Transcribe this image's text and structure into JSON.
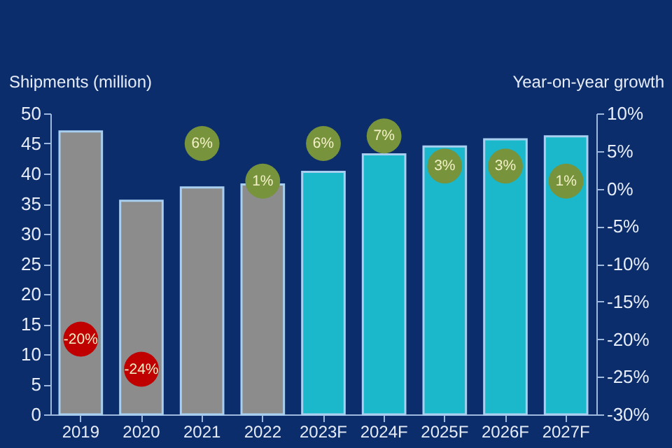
{
  "chart_data": {
    "type": "bar",
    "ylabel": "Shipments (million)",
    "y2label": "Year-on-year growth",
    "categories": [
      "2019",
      "2020",
      "2021",
      "2022",
      "2023F",
      "2024F",
      "2025F",
      "2026F",
      "2027F"
    ],
    "series": [
      {
        "values": [
          47.0,
          35.5,
          37.7,
          38.2,
          40.3,
          43.2,
          44.5,
          45.7,
          46.2
        ],
        "colors": [
          "#8c8c8c",
          "#8c8c8c",
          "#8c8c8c",
          "#8c8c8c",
          "#1bb8cc",
          "#1bb8cc",
          "#1bb8cc",
          "#1bb8cc",
          "#1bb8cc"
        ]
      },
      {
        "type": "scatter",
        "axis": "y2",
        "values": [
          -20,
          -24,
          6,
          1,
          6,
          7,
          3,
          3,
          1
        ],
        "colors": [
          "#c00000",
          "#c00000",
          "#77933c",
          "#77933c",
          "#77933c",
          "#77933c",
          "#77933c",
          "#77933c",
          "#77933c"
        ],
        "value_labels": [
          "-20%",
          "-24%",
          "6%",
          "1%",
          "6%",
          "7%",
          "3%",
          "3%",
          "1%"
        ]
      }
    ],
    "ylim": [
      0,
      50
    ],
    "yticks": [
      0,
      5,
      10,
      15,
      20,
      25,
      30,
      35,
      40,
      45,
      50
    ],
    "y2lim": [
      -30,
      10
    ],
    "y2ticks": [
      {
        "value": -30,
        "label": "-30%"
      },
      {
        "value": -25,
        "label": "-25%"
      },
      {
        "value": -20,
        "label": "-20%"
      },
      {
        "value": -15,
        "label": "-15%"
      },
      {
        "value": -10,
        "label": "-10%"
      },
      {
        "value": -5,
        "label": "-5%"
      },
      {
        "value": 0,
        "label": "0%"
      },
      {
        "value": 5,
        "label": "5%"
      },
      {
        "value": 10,
        "label": "10%"
      }
    ],
    "marker": "circle",
    "grid": false
  }
}
